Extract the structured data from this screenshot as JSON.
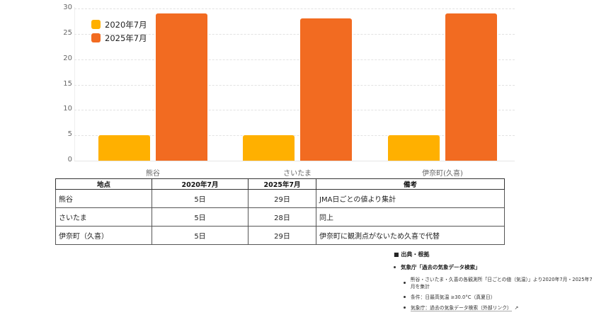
{
  "chart_data": {
    "type": "bar",
    "title": "",
    "xlabel": "",
    "ylabel": "",
    "ylim": [
      0,
      30
    ],
    "yticks": [
      0,
      5,
      10,
      15,
      20,
      25,
      30
    ],
    "grid": true,
    "legend_position": "top-left inside",
    "categories": [
      "熊谷",
      "さいたま",
      "伊奈町(久喜)"
    ],
    "series": [
      {
        "name": "2020年7月",
        "color": "#FFB000",
        "values": [
          5,
          5,
          5
        ]
      },
      {
        "name": "2025年7月",
        "color": "#F26B21",
        "values": [
          29,
          28,
          29
        ]
      }
    ]
  },
  "table": {
    "headers": [
      "地点",
      "2020年7月",
      "2025年7月",
      "備考"
    ],
    "rows": [
      [
        "熊谷",
        "5日",
        "29日",
        "JMA日ごとの値より集計"
      ],
      [
        "さいたま",
        "5日",
        "28日",
        "同上"
      ],
      [
        "伊奈町（久喜）",
        "5日",
        "29日",
        "伊奈町に観測点がないため久喜で代替"
      ]
    ]
  },
  "sources": {
    "heading": "■ 出典・根拠",
    "main": "気象庁「過去の気象データ検索」",
    "items": [
      "熊谷・さいたま・久喜の各観測所「日ごとの値（気温）」より2020年7月・2025年7月を集計",
      "条件：日最高気温 ≥30.0°C（真夏日）",
      "気象庁：過去の気象データ検索（外部リンク）"
    ],
    "external_link_icon": "↗"
  }
}
